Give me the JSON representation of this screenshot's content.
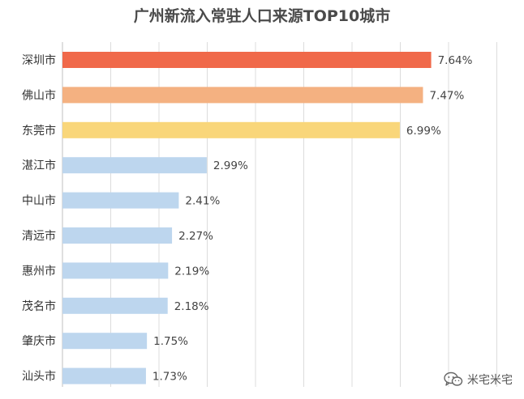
{
  "chart_data": {
    "type": "bar",
    "orientation": "horizontal",
    "title": "广州新流入常驻人口来源TOP10城市",
    "categories": [
      "深圳市",
      "佛山市",
      "东莞市",
      "湛江市",
      "中山市",
      "清远市",
      "惠州市",
      "茂名市",
      "肇庆市",
      "汕头市"
    ],
    "values": [
      7.64,
      7.47,
      6.99,
      2.99,
      2.41,
      2.27,
      2.19,
      2.18,
      1.75,
      1.73
    ],
    "value_labels": [
      "7.64%",
      "7.47%",
      "6.99%",
      "2.99%",
      "2.41%",
      "2.27%",
      "2.19%",
      "2.18%",
      "1.75%",
      "1.73%"
    ],
    "bar_colors": [
      "#f0694a",
      "#f4b181",
      "#f9d67a",
      "#bdd6ee",
      "#bdd6ee",
      "#bdd6ee",
      "#bdd6ee",
      "#bdd6ee",
      "#bdd6ee",
      "#bdd6ee"
    ],
    "xlim": [
      0,
      9
    ],
    "grid": true,
    "legend": "none"
  },
  "watermark": {
    "icon": "wechat-icon",
    "text": "米宅米宅"
  }
}
